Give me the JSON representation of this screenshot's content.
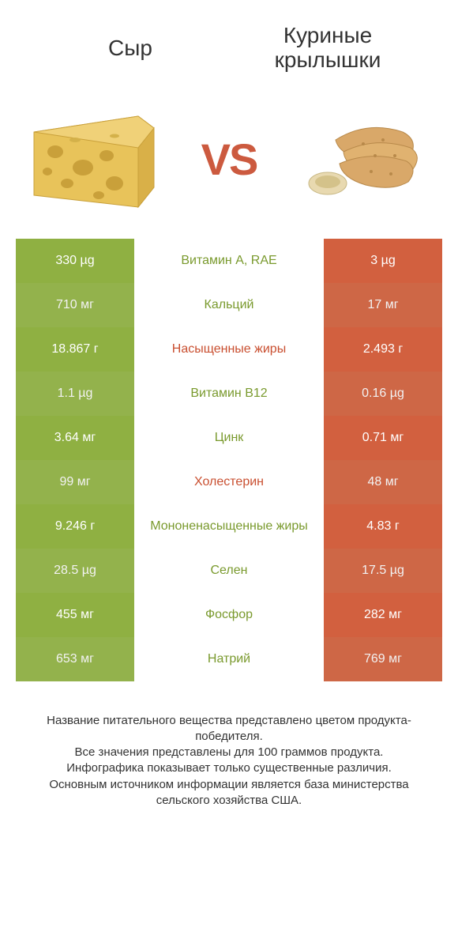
{
  "header": {
    "left": "Сыр",
    "right": "Куриные крылышки",
    "vs": "VS"
  },
  "colors": {
    "left_bg": "#8fb042",
    "left_bg_alt": "#9bbb50",
    "right_bg": "#d2603f",
    "right_bg_alt": "#d96c4a",
    "mid_green": "#7a9a2e",
    "mid_orange": "#c94f30",
    "vs_text": "#cc5a3f",
    "title_text": "#333333"
  },
  "rows": [
    {
      "left": "330 µg",
      "label": "Витамин A, RAE",
      "right": "3 µg",
      "winner": "left"
    },
    {
      "left": "710 мг",
      "label": "Кальций",
      "right": "17 мг",
      "winner": "left"
    },
    {
      "left": "18.867 г",
      "label": "Насыщенные жиры",
      "right": "2.493 г",
      "winner": "right"
    },
    {
      "left": "1.1 µg",
      "label": "Витамин B12",
      "right": "0.16 µg",
      "winner": "left"
    },
    {
      "left": "3.64 мг",
      "label": "Цинк",
      "right": "0.71 мг",
      "winner": "left"
    },
    {
      "left": "99 мг",
      "label": "Холестерин",
      "right": "48 мг",
      "winner": "right"
    },
    {
      "left": "9.246 г",
      "label": "Мононенасыщенные жиры",
      "right": "4.83 г",
      "winner": "left"
    },
    {
      "left": "28.5 µg",
      "label": "Селен",
      "right": "17.5 µg",
      "winner": "left"
    },
    {
      "left": "455 мг",
      "label": "Фосфор",
      "right": "282 мг",
      "winner": "left"
    },
    {
      "left": "653 мг",
      "label": "Натрий",
      "right": "769 мг",
      "winner": "left"
    }
  ],
  "footer": {
    "line1": "Название питательного вещества представлено цветом продукта-победителя.",
    "line2": "Все значения представлены для 100 граммов продукта.",
    "line3": "Инфографика показывает только существенные различия.",
    "line4": "Основным источником информации является база министерства сельского хозяйства США."
  }
}
